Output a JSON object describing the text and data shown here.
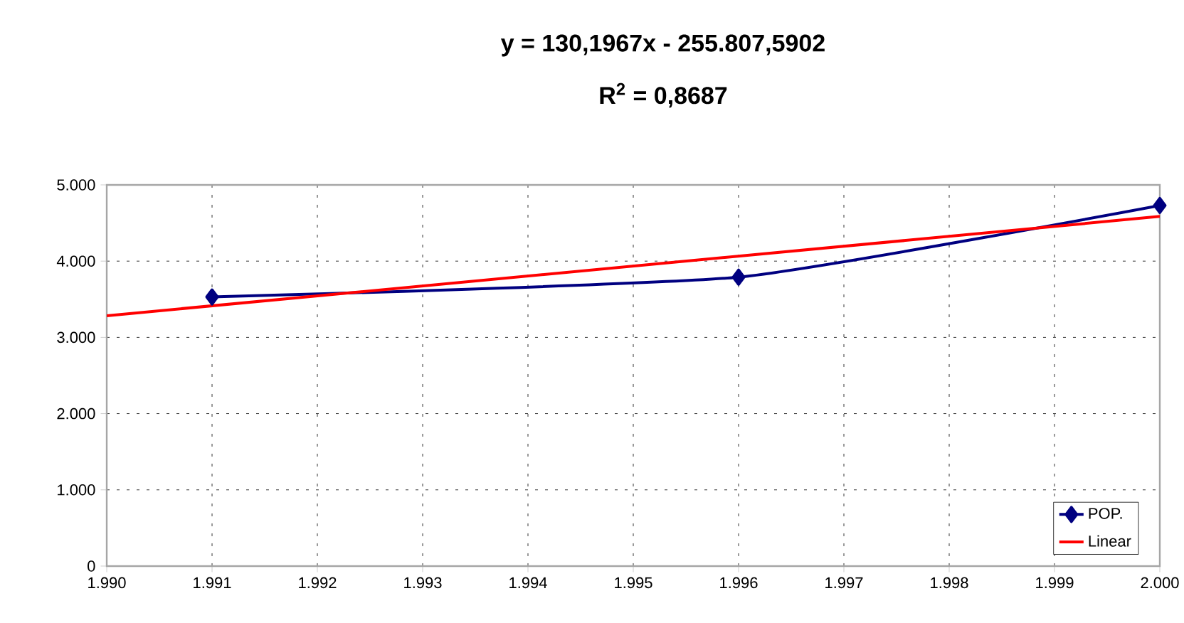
{
  "chart_data": {
    "type": "line",
    "title": "y = 130,1967x - 255.807,5902",
    "subtitle": "R$^{2}$ = 0,8687",
    "series": [
      {
        "name": "POP.",
        "color": "#000080",
        "x": [
          1991,
          1996,
          2000
        ],
        "values": [
          3530,
          3790,
          4730
        ],
        "marker": "diamond"
      },
      {
        "name": "Linear",
        "color": "#ff0000",
        "x": [
          1990,
          2000
        ],
        "values": [
          3284,
          4586
        ],
        "marker": "none"
      }
    ],
    "xlim": [
      1990,
      2000
    ],
    "xticks": [
      {
        "value": 1990,
        "label": "1.990"
      },
      {
        "value": 1991,
        "label": "1.991"
      },
      {
        "value": 1992,
        "label": "1.992"
      },
      {
        "value": 1993,
        "label": "1.993"
      },
      {
        "value": 1994,
        "label": "1.994"
      },
      {
        "value": 1995,
        "label": "1.995"
      },
      {
        "value": 1996,
        "label": "1.996"
      },
      {
        "value": 1997,
        "label": "1.997"
      },
      {
        "value": 1998,
        "label": "1.998"
      },
      {
        "value": 1999,
        "label": "1.999"
      },
      {
        "value": 2000,
        "label": "2.000"
      }
    ],
    "ylim": [
      0,
      5000
    ],
    "yticks": [
      0,
      {
        "value": 1000,
        "label": "1.000"
      },
      {
        "value": 2000,
        "label": "2.000"
      },
      {
        "value": 3000,
        "label": "3.000"
      },
      {
        "value": 4000,
        "label": "4.000"
      },
      {
        "value": 5000,
        "label": "5.000"
      }
    ],
    "grid": true,
    "legend": "bottom right",
    "line_style": "solid"
  }
}
